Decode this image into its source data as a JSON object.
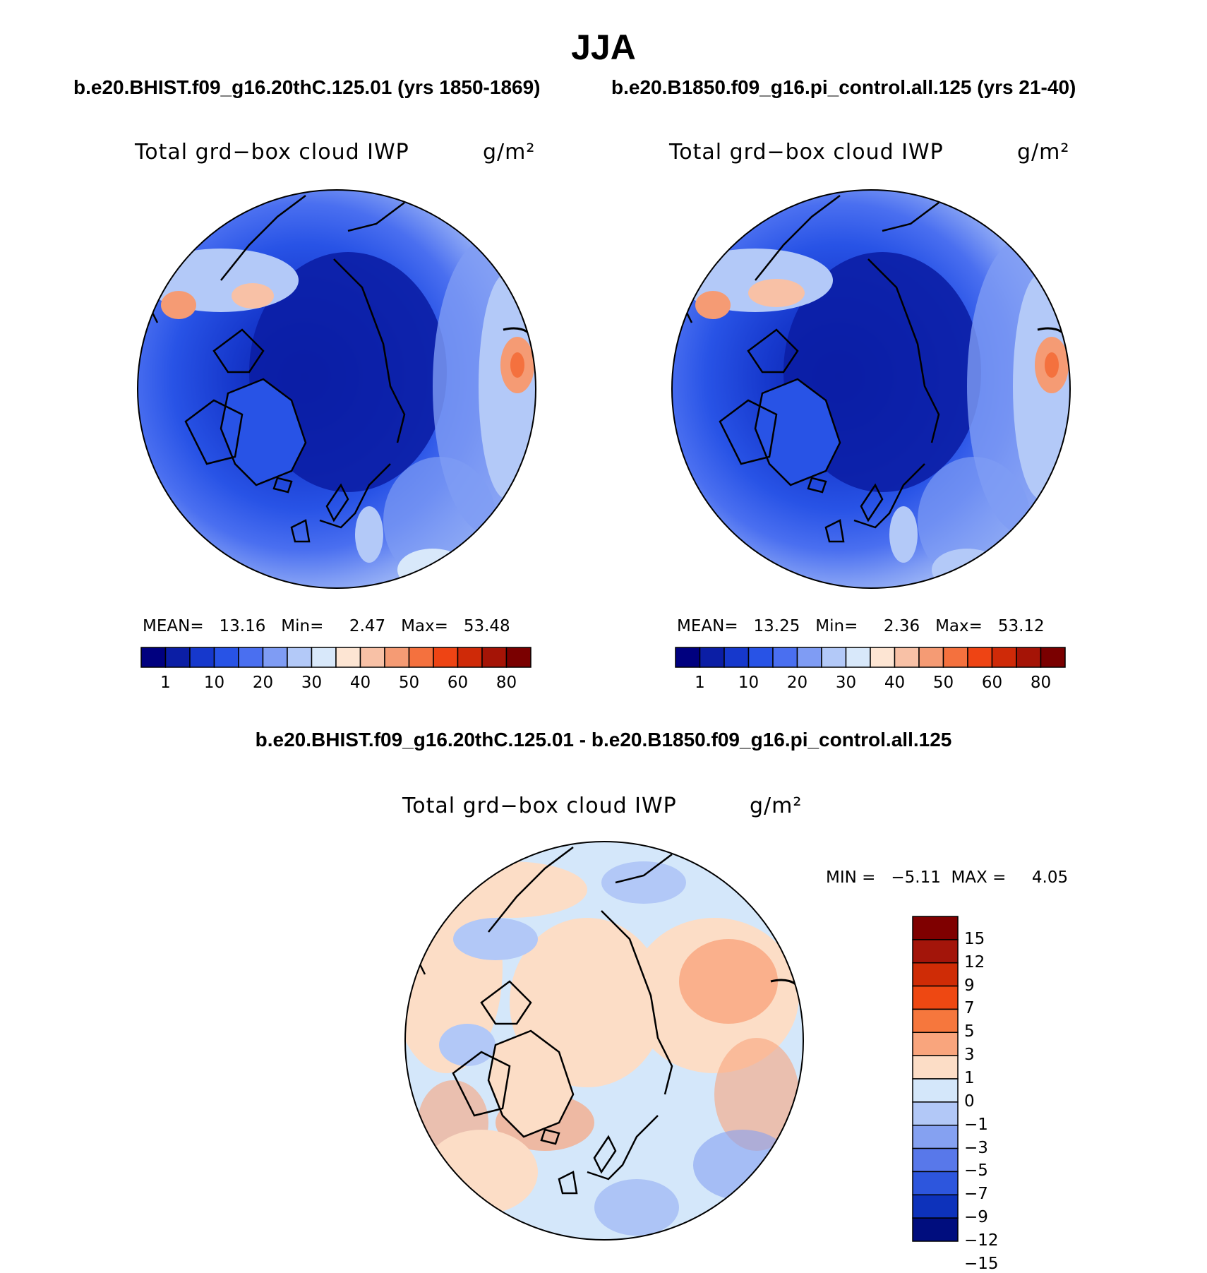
{
  "season": "JJA",
  "panels": {
    "left": {
      "subtitle": "b.e20.BHIST.f09_g16.20thC.125.01 (yrs 1850-1869)",
      "variable": "Total grd−box cloud IWP",
      "units": "g/m²",
      "stats": "MEAN=   13.16   Min=     2.47   Max=   53.48",
      "mean": 13.16,
      "min": 2.47,
      "max": 53.48
    },
    "right": {
      "subtitle": "b.e20.B1850.f09_g16.pi_control.all.125 (yrs 21-40)",
      "variable": "Total grd−box cloud IWP",
      "units": "g/m²",
      "stats": "MEAN=   13.25   Min=     2.36   Max=   53.12",
      "mean": 13.25,
      "min": 2.36,
      "max": 53.12
    },
    "diff": {
      "subtitle": "b.e20.BHIST.f09_g16.20thC.125.01 - b.e20.B1850.f09_g16.pi_control.all.125",
      "variable": "Total grd−box cloud IWP",
      "units": "g/m²",
      "stats": "MIN =   −5.11  MAX =     4.05",
      "min": -5.11,
      "max": 4.05
    }
  },
  "colorbar_main": {
    "colors": [
      "#00007f",
      "#0b1ea5",
      "#1638cc",
      "#2853e6",
      "#4a6ff0",
      "#7f9cf4",
      "#b3c9f8",
      "#d8e8fa",
      "#fde5d3",
      "#f8c1a6",
      "#f59b74",
      "#f4713e",
      "#ee4414",
      "#cf2a08",
      "#a51406",
      "#7a0000"
    ],
    "labels": [
      "1",
      "10",
      "20",
      "30",
      "40",
      "50",
      "60",
      "80"
    ]
  },
  "colorbar_diff": {
    "colors": [
      "#7f0000",
      "#a3150a",
      "#cf2c06",
      "#ee4812",
      "#f6773d",
      "#f9a57d",
      "#fcddc6",
      "#d4e7fa",
      "#b2c8f7",
      "#85a1f1",
      "#5878ea",
      "#2d56dd",
      "#0d32bb",
      "#000d7e"
    ],
    "labels": [
      "15",
      "12",
      "9",
      "7",
      "5",
      "3",
      "1",
      "0",
      "−1",
      "−3",
      "−5",
      "−7",
      "−9",
      "−12",
      "−15"
    ]
  }
}
